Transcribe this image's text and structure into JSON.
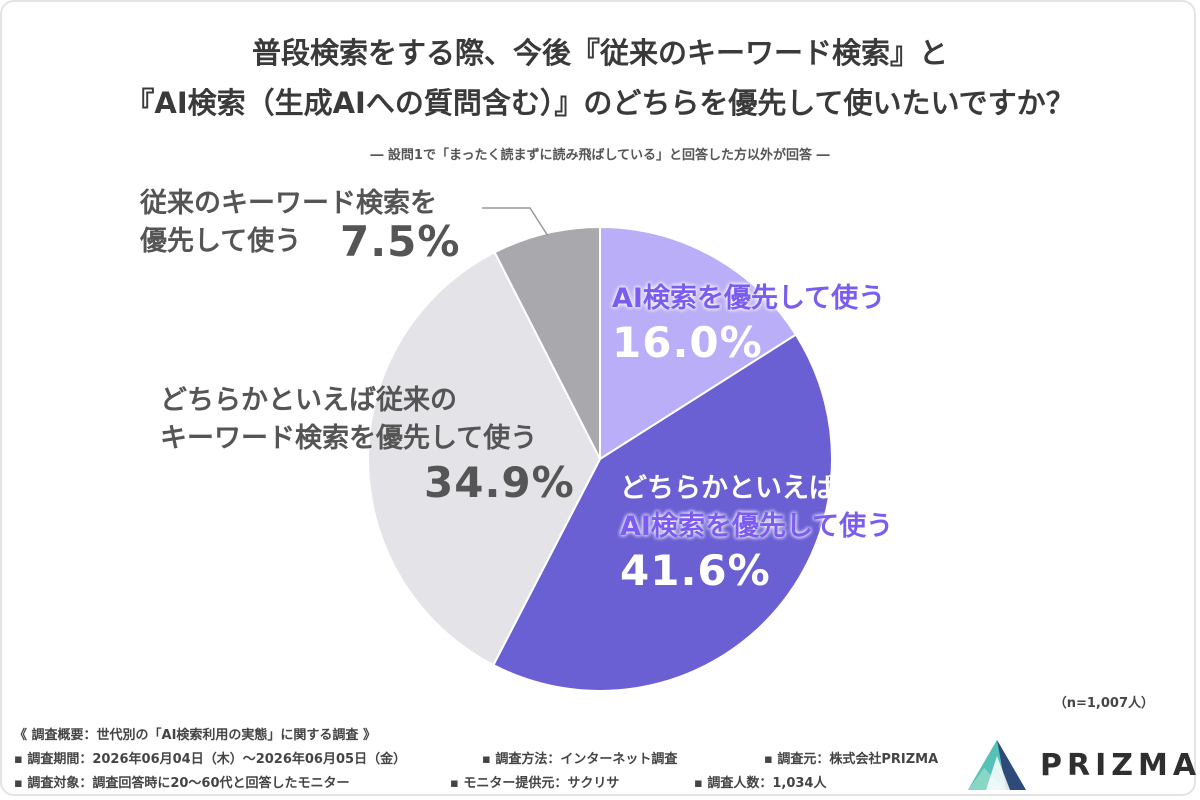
{
  "title_line1": "普段検索をする際、今後『従来のキーワード検索』と",
  "title_line2": "『AI検索（生成AIへの質問含む）』のどちらを優先して使いたいですか？",
  "subtitle": "― 設問1で「まったく読まずに読み飛ばしている」と回答した方以外が回答 ―",
  "chart_data": {
    "type": "pie",
    "slices": [
      {
        "label_lines": [
          "AI検索を優先して使う"
        ],
        "value": 16.0,
        "display": "16.0%",
        "color": "#b9aef7"
      },
      {
        "label_lines": [
          "どちらかといえば",
          "AI検索を優先して使う"
        ],
        "value": 41.6,
        "display": "41.6%",
        "color": "#6a5fd3"
      },
      {
        "label_lines": [
          "どちらかといえば従来の",
          "キーワード検索を優先して使う"
        ],
        "value": 34.9,
        "display": "34.9%",
        "color": "#e4e3e8"
      },
      {
        "label_lines": [
          "従来のキーワード検索を",
          "優先して使う"
        ],
        "value": 7.5,
        "display": "7.5%",
        "color": "#a9a8ad"
      }
    ],
    "start_angle": "12 o'clock",
    "direction": "clockwise"
  },
  "n_label": "（n=1,007人）",
  "footer": {
    "overview": "《 調査概要：世代別の「AI検索利用の実態」に関する調査 》",
    "period": "▪ 調査期間：2026年06月04日（木）〜2026年06月05日（金）",
    "method": "▪ 調査方法：インターネット調査",
    "organizer": "▪ 調査元：株式会社PRIZMA",
    "target": "▪ 調査対象：調査回答時に20〜60代と回答したモニター",
    "provider": "▪ モニター提供元：サクリサ",
    "count": "▪ 調査人数：1,034人"
  },
  "logo_text": "PRIZMA"
}
